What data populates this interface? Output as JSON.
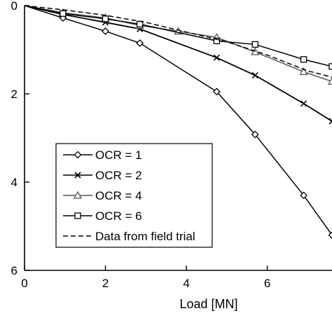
{
  "chart_data": {
    "type": "line",
    "title": "",
    "xlabel": "Load [MN]",
    "ylabel": "",
    "xlim": [
      0,
      7.6
    ],
    "ylim": [
      0,
      6
    ],
    "y_inverted": true,
    "xticks": [
      "0",
      "2",
      "4",
      "6"
    ],
    "yticks": [
      "0",
      "2",
      "4",
      "6"
    ],
    "grid": false,
    "legend_position": "bottom-left",
    "series": [
      {
        "name": "OCR = 1",
        "marker": "diamond",
        "color": "#000000",
        "x": [
          0,
          0.95,
          2.0,
          2.85,
          4.75,
          5.7,
          6.9,
          7.6
        ],
        "y": [
          0,
          0.28,
          0.58,
          0.85,
          1.95,
          2.92,
          4.3,
          5.2
        ]
      },
      {
        "name": "OCR = 2",
        "marker": "cross",
        "color": "#000000",
        "x": [
          0,
          0.95,
          2.0,
          2.85,
          4.75,
          5.7,
          6.9,
          7.6
        ],
        "y": [
          0,
          0.2,
          0.38,
          0.53,
          1.18,
          1.58,
          2.22,
          2.62
        ]
      },
      {
        "name": "OCR = 4",
        "marker": "triangle",
        "color": "#555555",
        "x": [
          0,
          0.95,
          2.0,
          2.85,
          3.8,
          4.75,
          5.7,
          6.9,
          7.6
        ],
        "y": [
          0,
          0.16,
          0.28,
          0.45,
          0.58,
          0.72,
          1.05,
          1.5,
          1.72
        ]
      },
      {
        "name": "OCR = 6",
        "marker": "square",
        "color": "#000000",
        "x": [
          0,
          0.95,
          2.0,
          2.85,
          4.75,
          5.7,
          6.9,
          7.6
        ],
        "y": [
          0,
          0.18,
          0.3,
          0.42,
          0.8,
          0.88,
          1.22,
          1.38
        ]
      },
      {
        "name": "Data from field trial",
        "marker": "none",
        "dashed": true,
        "color": "#000000",
        "x": [
          0,
          1.0,
          2.0,
          3.0,
          4.0,
          5.0,
          6.0,
          7.0,
          7.6
        ],
        "y": [
          0,
          0.1,
          0.22,
          0.38,
          0.6,
          0.82,
          1.12,
          1.48,
          1.62
        ]
      }
    ]
  }
}
